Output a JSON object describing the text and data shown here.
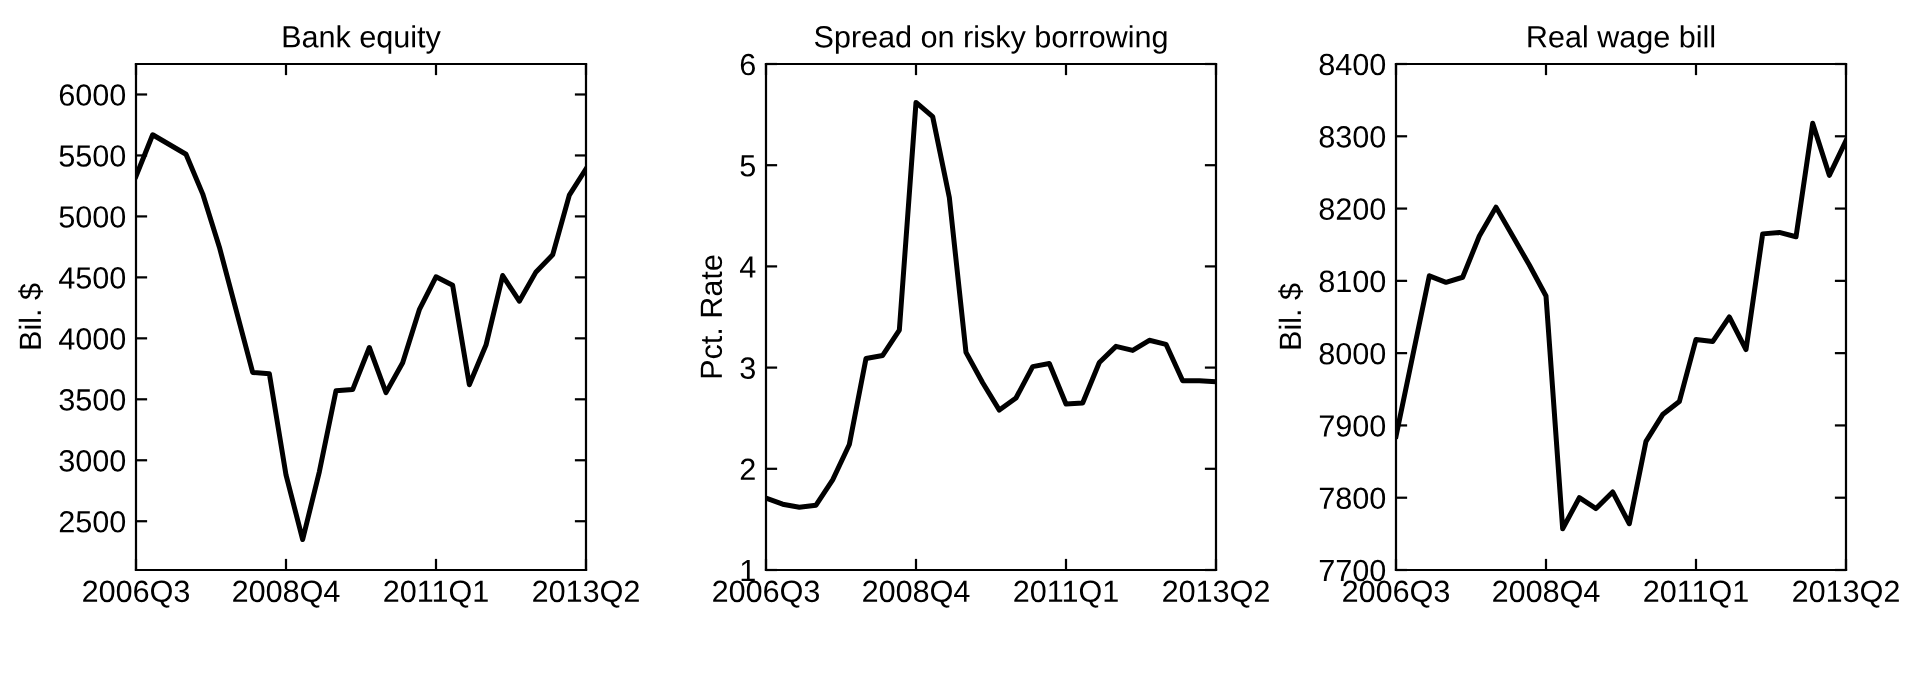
{
  "chart_data": [
    {
      "type": "line",
      "title": "Bank equity",
      "ylabel": "Bil. $",
      "categories": [
        "2006Q3",
        null,
        null,
        null,
        null,
        null,
        null,
        null,
        null,
        "2008Q4",
        null,
        null,
        null,
        null,
        null,
        null,
        null,
        null,
        "2011Q1",
        null,
        null,
        null,
        null,
        null,
        null,
        null,
        null,
        "2013Q2"
      ],
      "series": [
        {
          "color": "#000000",
          "values": [
            5330,
            5670,
            5590,
            5510,
            5185,
            4750,
            4235,
            3720,
            3710,
            2880,
            2350,
            2905,
            3570,
            3580,
            3925,
            3555,
            3800,
            4235,
            4505,
            4435,
            3620,
            3945,
            4515,
            4305,
            4545,
            4685,
            5175,
            5390
          ]
        }
      ],
      "ylim": [
        2100,
        6250
      ],
      "yticks": [
        2500,
        3000,
        3500,
        4000,
        4500,
        5000,
        5500,
        6000
      ],
      "grid": false
    },
    {
      "type": "line",
      "title": "Spread on risky borrowing",
      "ylabel": "Pct. Rate",
      "categories": [
        "2006Q3",
        null,
        null,
        null,
        null,
        null,
        null,
        null,
        null,
        "2008Q4",
        null,
        null,
        null,
        null,
        null,
        null,
        null,
        null,
        "2011Q1",
        null,
        null,
        null,
        null,
        null,
        null,
        null,
        null,
        "2013Q2"
      ],
      "series": [
        {
          "color": "#000000",
          "values": [
            1.71,
            1.65,
            1.62,
            1.64,
            1.89,
            2.24,
            3.09,
            3.12,
            3.37,
            5.62,
            5.48,
            4.68,
            3.15,
            2.85,
            2.58,
            2.7,
            3.01,
            3.04,
            2.64,
            2.65,
            3.05,
            3.21,
            3.17,
            3.27,
            3.23,
            2.87,
            2.87,
            2.86
          ]
        }
      ],
      "ylim": [
        1,
        6
      ],
      "yticks": [
        1,
        2,
        3,
        4,
        5,
        6
      ],
      "grid": false
    },
    {
      "type": "line",
      "title": "Real wage bill",
      "ylabel": "Bil. $",
      "categories": [
        "2006Q3",
        null,
        null,
        null,
        null,
        null,
        null,
        null,
        null,
        "2008Q4",
        null,
        null,
        null,
        null,
        null,
        null,
        null,
        null,
        "2011Q1",
        null,
        null,
        null,
        null,
        null,
        null,
        null,
        null,
        "2013Q2"
      ],
      "series": [
        {
          "color": "#000000",
          "values": [
            7885,
            7996,
            8107,
            8098,
            8105,
            8162,
            8202,
            8162,
            8122,
            8079,
            7757,
            7800,
            7785,
            7808,
            7764,
            7878,
            7915,
            7933,
            8019,
            8016,
            8050,
            8005,
            8165,
            8167,
            8161,
            8318,
            8246,
            8294
          ]
        }
      ],
      "ylim": [
        7700,
        8400
      ],
      "yticks": [
        7700,
        7800,
        7900,
        8000,
        8100,
        8200,
        8300,
        8400
      ],
      "grid": false
    }
  ]
}
